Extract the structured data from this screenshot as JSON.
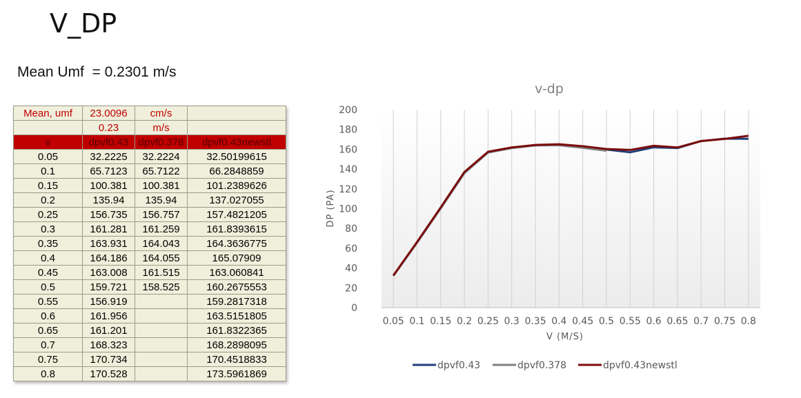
{
  "slide": {
    "title": "V_DP",
    "mean_umf": "Mean Umf  = 0.2301 m/s"
  },
  "table": {
    "top_rows": [
      [
        "Mean, umf",
        "23.0096",
        "cm/s",
        ""
      ],
      [
        "",
        "0.23",
        "m/s",
        ""
      ]
    ],
    "header": [
      "v",
      "dpvf0.43",
      "dpvf0.378",
      "dpvf0.43newstl"
    ],
    "rows": [
      [
        "0.05",
        "32.2225",
        "32.2224",
        "32.50199615"
      ],
      [
        "0.1",
        "65.7123",
        "65.7122",
        "66.2848859"
      ],
      [
        "0.15",
        "100.381",
        "100.381",
        "101.2389626"
      ],
      [
        "0.2",
        "135.94",
        "135.94",
        "137.027055"
      ],
      [
        "0.25",
        "156.735",
        "156.757",
        "157.4821205"
      ],
      [
        "0.3",
        "161.281",
        "161.259",
        "161.8393615"
      ],
      [
        "0.35",
        "163.931",
        "164.043",
        "164.3636775"
      ],
      [
        "0.4",
        "164.186",
        "164.055",
        "165.07909"
      ],
      [
        "0.45",
        "163.008",
        "161.515",
        "163.060841"
      ],
      [
        "0.5",
        "159.721",
        "158.525",
        "160.2675553"
      ],
      [
        "0.55",
        "156.919",
        "",
        "159.2817318"
      ],
      [
        "0.6",
        "161.956",
        "",
        "163.5151805"
      ],
      [
        "0.65",
        "161.201",
        "",
        "161.8322365"
      ],
      [
        "0.7",
        "168.323",
        "",
        "168.2898095"
      ],
      [
        "0.75",
        "170.734",
        "",
        "170.4518833"
      ],
      [
        "0.8",
        "170.528",
        "",
        "173.5961869"
      ]
    ]
  },
  "chart_data": {
    "type": "line",
    "title": "v-dp",
    "xlabel": "V (M/S)",
    "ylabel": "DP (PA)",
    "ylim": [
      0,
      200
    ],
    "yticks": [
      "0",
      "20",
      "40",
      "60",
      "80",
      "100",
      "120",
      "140",
      "160",
      "180",
      "200"
    ],
    "categories": [
      "0.05",
      "0.1",
      "0.15",
      "0.2",
      "0.25",
      "0.3",
      "0.35",
      "0.4",
      "0.45",
      "0.5",
      "0.55",
      "0.6",
      "0.65",
      "0.7",
      "0.75",
      "0.8"
    ],
    "vertical_gridlines": true,
    "legend_position": "bottom",
    "series": [
      {
        "name": "dpvf0.43",
        "color": "#1f3f7a",
        "values": [
          32.2225,
          65.7123,
          100.381,
          135.94,
          156.735,
          161.281,
          163.931,
          164.186,
          163.008,
          159.721,
          156.919,
          161.956,
          161.201,
          168.323,
          170.734,
          170.528
        ]
      },
      {
        "name": "dpvf0.378",
        "color": "#7f7f7f",
        "values": [
          32.2224,
          65.7122,
          100.381,
          135.94,
          156.757,
          161.259,
          164.043,
          164.055,
          161.515,
          158.525,
          null,
          null,
          null,
          null,
          null,
          null
        ]
      },
      {
        "name": "dpvf0.43newstl",
        "color": "#7b0c0c",
        "values": [
          32.50199615,
          66.2848859,
          101.2389626,
          137.027055,
          157.4821205,
          161.8393615,
          164.3636775,
          165.07909,
          163.060841,
          160.2675553,
          159.2817318,
          163.5151805,
          161.8322365,
          168.2898095,
          170.4518833,
          173.5961869
        ]
      }
    ]
  }
}
